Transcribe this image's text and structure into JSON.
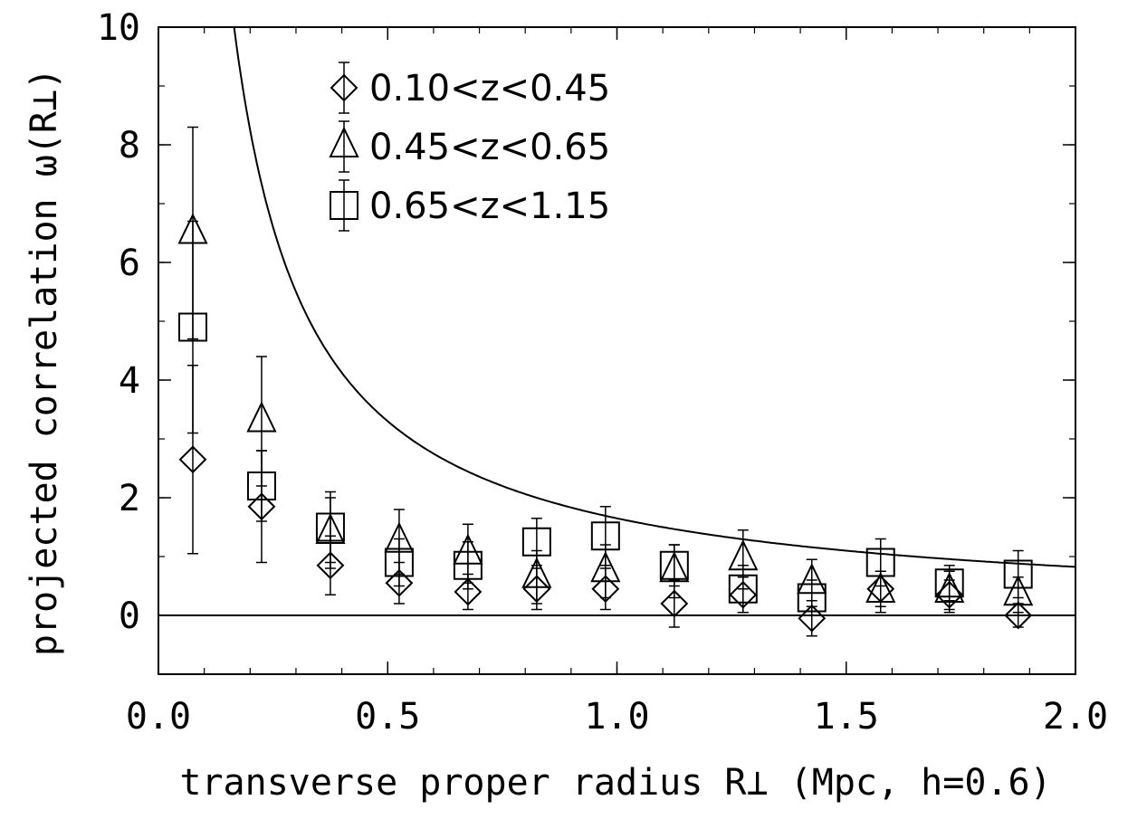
{
  "chart_data": {
    "type": "scatter",
    "title": "",
    "xlabel": "transverse proper radius  R⊥ (Mpc, h=0.6)",
    "ylabel": "projected correlation  ω(R⊥)",
    "xlim": [
      0.0,
      2.0
    ],
    "ylim": [
      -1.0,
      10.0
    ],
    "x_ticks": [
      "0.0",
      "0.5",
      "1.0",
      "1.5",
      "2.0"
    ],
    "y_ticks": [
      "0",
      "2",
      "4",
      "6",
      "8",
      "10"
    ],
    "grid": false,
    "legend_position": "top-left",
    "series": [
      {
        "name": "0.10<z<0.45",
        "marker": "diamond",
        "x": [
          0.075,
          0.225,
          0.375,
          0.525,
          0.675,
          0.825,
          0.975,
          1.125,
          1.275,
          1.425,
          1.575,
          1.725,
          1.875
        ],
        "y": [
          2.65,
          1.85,
          0.85,
          0.55,
          0.4,
          0.45,
          0.45,
          0.2,
          0.35,
          -0.05,
          0.45,
          0.35,
          0.0
        ],
        "yerr": [
          1.6,
          0.95,
          0.5,
          0.35,
          0.3,
          0.35,
          0.35,
          0.4,
          0.3,
          0.3,
          0.3,
          0.25,
          0.2
        ]
      },
      {
        "name": "0.45<z<0.65",
        "marker": "triangle",
        "x": [
          0.075,
          0.225,
          0.375,
          0.525,
          0.675,
          0.825,
          0.975,
          1.125,
          1.275,
          1.425,
          1.575,
          1.725,
          1.875
        ],
        "y": [
          6.5,
          3.3,
          1.4,
          1.25,
          1.05,
          0.65,
          0.75,
          0.75,
          0.95,
          0.55,
          0.4,
          0.4,
          0.35
        ],
        "yerr": [
          1.8,
          1.1,
          0.6,
          0.55,
          0.5,
          0.45,
          0.45,
          0.45,
          0.5,
          0.4,
          0.35,
          0.35,
          0.3
        ]
      },
      {
        "name": "0.65<z<1.15",
        "marker": "square",
        "x": [
          0.075,
          0.225,
          0.375,
          0.525,
          0.675,
          0.825,
          0.975,
          1.125,
          1.275,
          1.425,
          1.575,
          1.725,
          1.875
        ],
        "y": [
          4.9,
          2.2,
          1.5,
          0.9,
          0.85,
          1.25,
          1.35,
          0.85,
          0.45,
          0.3,
          0.9,
          0.55,
          0.7
        ],
        "yerr": [
          1.8,
          0.6,
          0.6,
          0.4,
          0.4,
          0.4,
          0.5,
          0.35,
          0.4,
          0.3,
          0.4,
          0.3,
          0.4
        ]
      }
    ],
    "reference_lines": [
      {
        "kind": "horizontal",
        "y": 0
      },
      {
        "kind": "curve",
        "formula": "y = 1.65 / x"
      }
    ]
  }
}
